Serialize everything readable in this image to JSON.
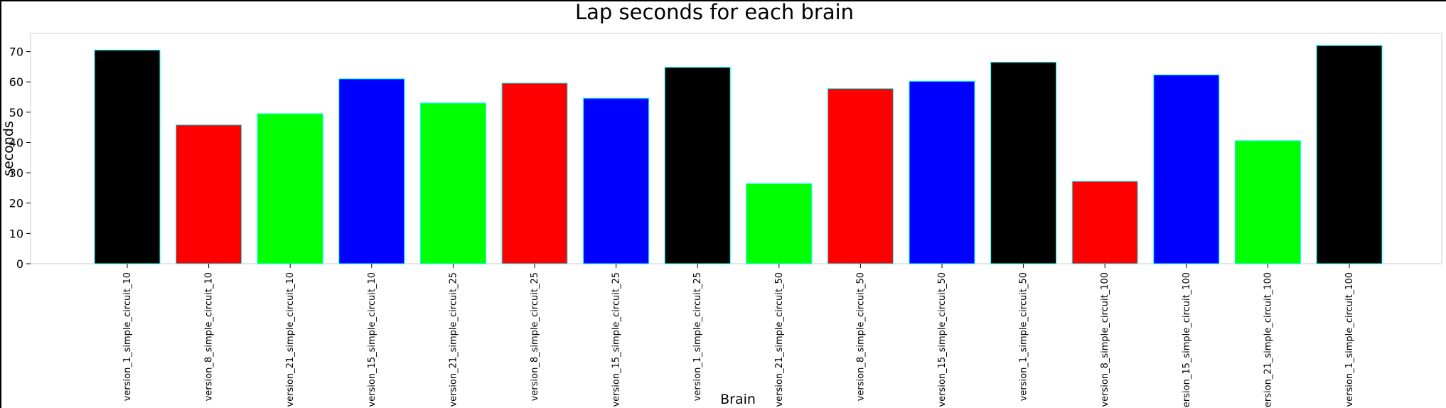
{
  "chart_data": {
    "type": "bar",
    "title": "Lap seconds for each brain",
    "xlabel": "Brain",
    "ylabel": "seconds",
    "categories": [
      "version_1_simple_circuit_10",
      "version_8_simple_circuit_10",
      "version_21_simple_circuit_10",
      "version_15_simple_circuit_10",
      "version_21_simple_circuit_25",
      "version_8_simple_circuit_25",
      "version_15_simple_circuit_25",
      "version_1_simple_circuit_25",
      "version_21_simple_circuit_50",
      "version_8_simple_circuit_50",
      "version_15_simple_circuit_50",
      "version_1_simple_circuit_50",
      "version_8_simple_circuit_100",
      "version_15_simple_circuit_100",
      "version_21_simple_circuit_100",
      "version_1_simple_circuit_100"
    ],
    "values": [
      70.5,
      45.8,
      49.5,
      61.0,
      53.0,
      59.6,
      54.6,
      64.8,
      26.4,
      57.8,
      60.2,
      66.5,
      27.2,
      62.3,
      40.6,
      72.0
    ],
    "colors": [
      "#000000",
      "#ff0000",
      "#00ff00",
      "#0000ff",
      "#00ff00",
      "#ff0000",
      "#0000ff",
      "#000000",
      "#00ff00",
      "#ff0000",
      "#0000ff",
      "#000000",
      "#ff0000",
      "#0000ff",
      "#00ff00",
      "#000000"
    ],
    "edge_color": "#00ffff",
    "ylim": [
      0,
      76
    ],
    "yticks": [
      0,
      10,
      20,
      30,
      40,
      50,
      60,
      70
    ],
    "grid": false
  }
}
